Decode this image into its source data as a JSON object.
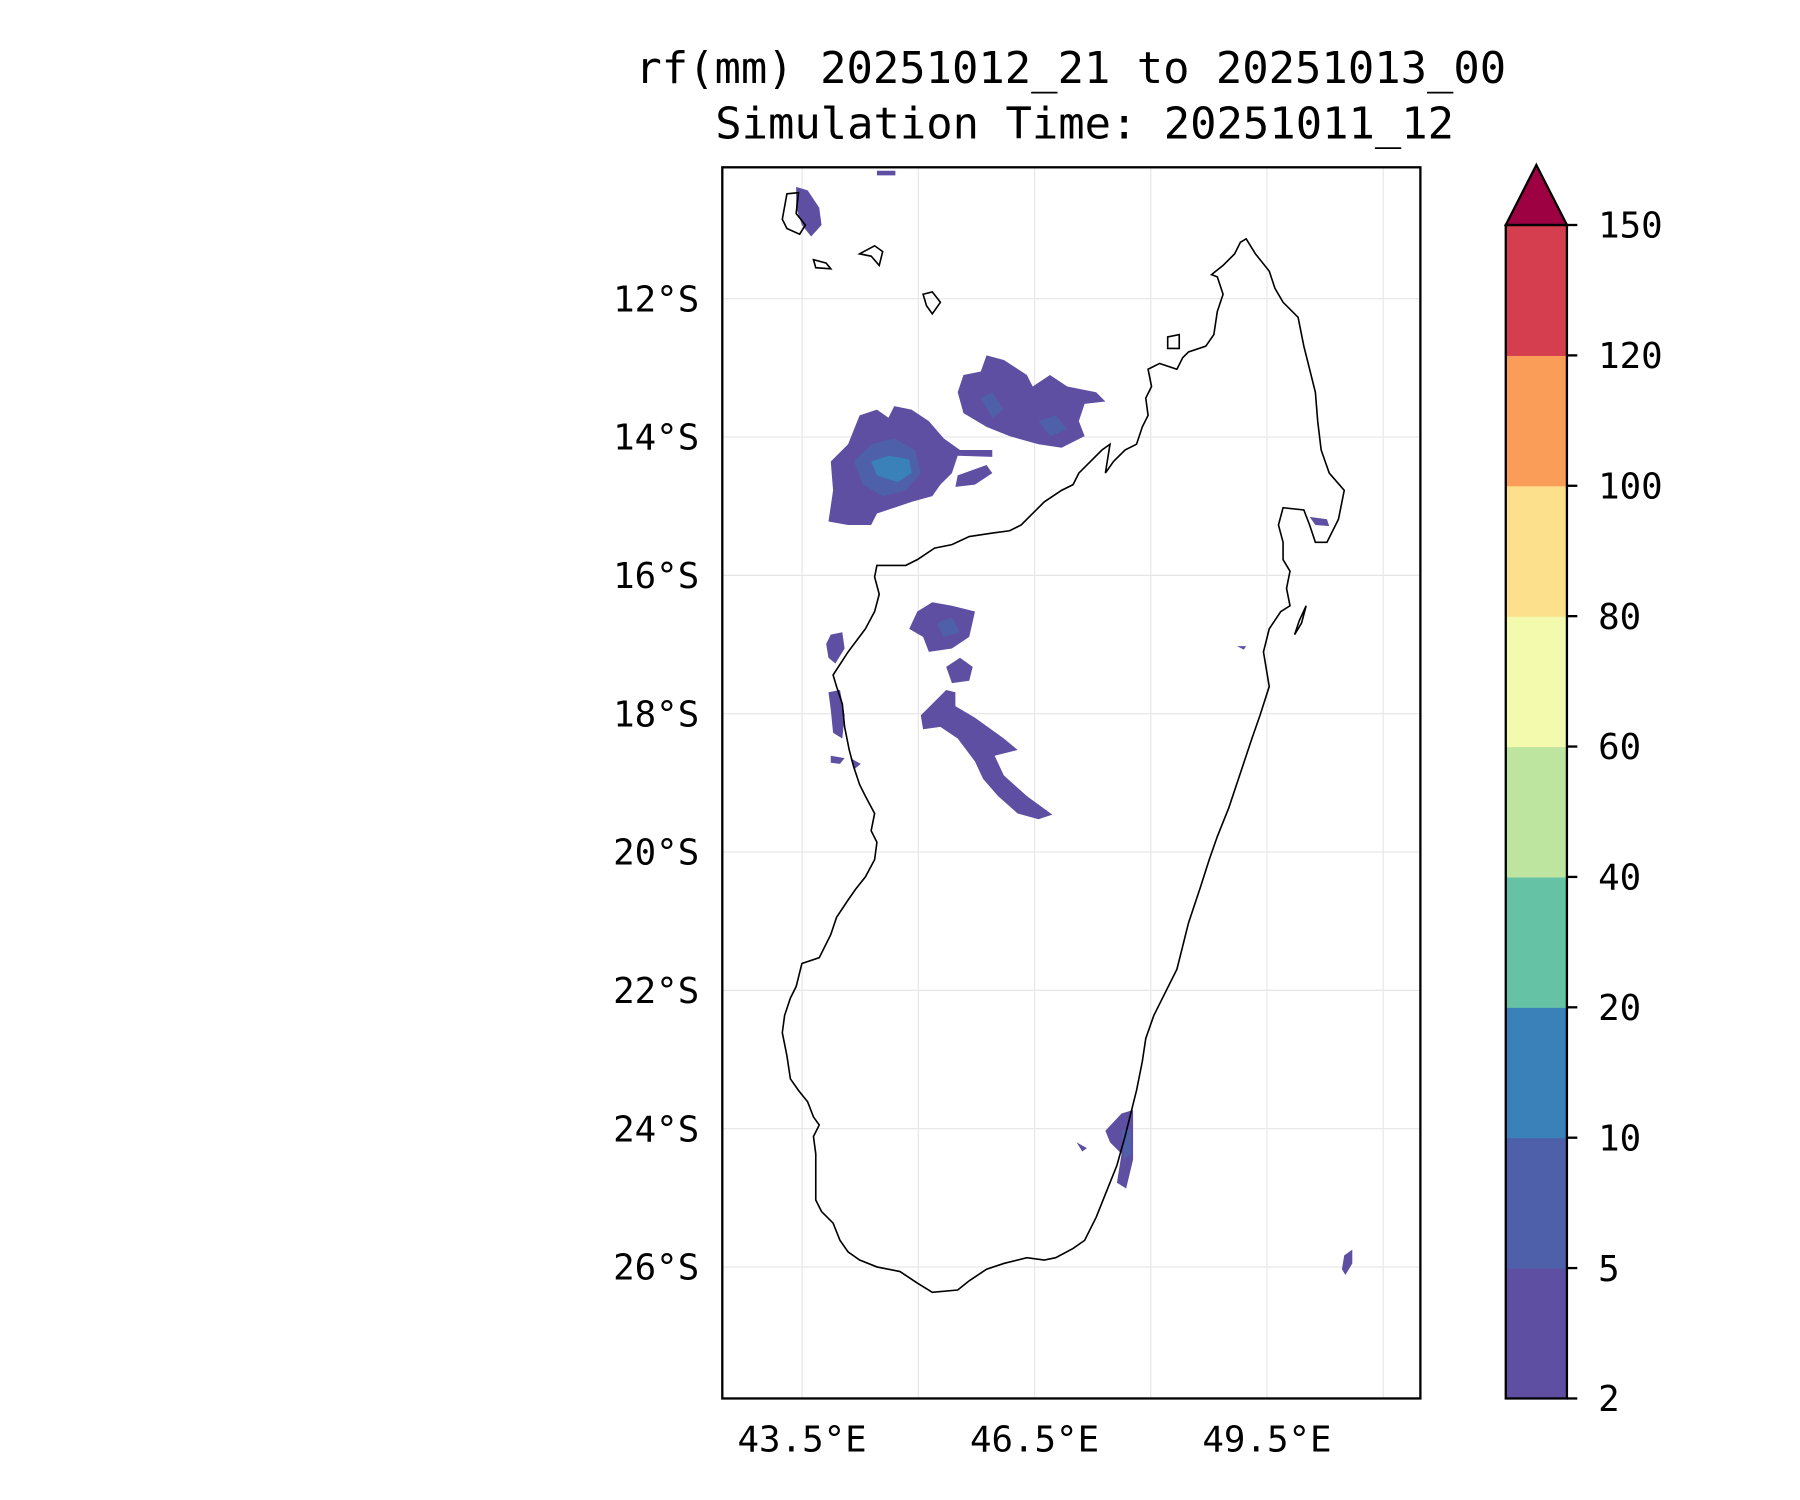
{
  "chart_data": {
    "type": "contourf-map",
    "title": "rf(mm) 20251012_21 to 20251013_00",
    "subtitle": "Simulation Time: 20251011_12",
    "variable": "rf(mm)",
    "lon_range": [
      42.47,
      51.48
    ],
    "lat_range": [
      -27.9,
      -10.1
    ],
    "x_ticks": [
      {
        "value": 43.5,
        "label": "43.5°E"
      },
      {
        "value": 46.5,
        "label": "46.5°E"
      },
      {
        "value": 49.5,
        "label": "49.5°E"
      }
    ],
    "x_gridlines": [
      43.5,
      45,
      46.5,
      48,
      49.5,
      51
    ],
    "y_ticks": [
      {
        "value": -12,
        "label": "12°S"
      },
      {
        "value": -14,
        "label": "14°S"
      },
      {
        "value": -16,
        "label": "16°S"
      },
      {
        "value": -18,
        "label": "18°S"
      },
      {
        "value": -20,
        "label": "20°S"
      },
      {
        "value": -22,
        "label": "22°S"
      },
      {
        "value": -24,
        "label": "24°S"
      },
      {
        "value": -26,
        "label": "26°S"
      }
    ],
    "grid": true,
    "colorbar": {
      "placement": "right",
      "extend": "max",
      "levels": [
        "2",
        "5",
        "10",
        "20",
        "40",
        "60",
        "80",
        "100",
        "120",
        "150"
      ],
      "colors": [
        "#5e4fa2",
        "#4e60aa",
        "#3a80b9",
        "#66c2a5",
        "#bee5a0",
        "#f4faad",
        "#fde08b",
        "#f99d59",
        "#d53e4f"
      ],
      "extend_color": "#9e0142"
    },
    "rain_regions": [
      {
        "name": "NW Mozambique Channel cluster",
        "max_level": "10-20"
      },
      {
        "name": "N of Mahajanga cluster",
        "max_level": "5-10"
      },
      {
        "name": "W central coast",
        "max_level": "5-10"
      },
      {
        "name": "Central highlands band",
        "max_level": "5-10"
      },
      {
        "name": "SE coast",
        "max_level": "5-10"
      }
    ]
  }
}
